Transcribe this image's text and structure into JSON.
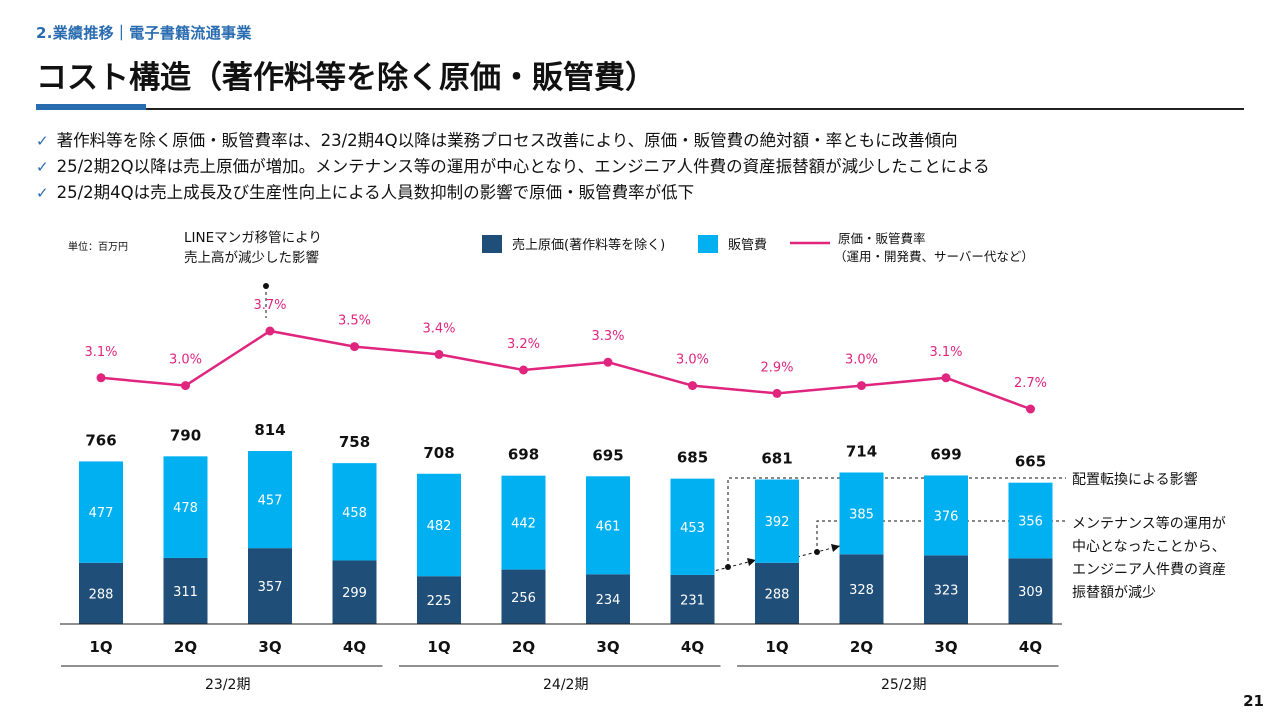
{
  "header": {
    "section": "2.業績推移｜電子書籍流通事業",
    "title": "コスト構造（著作料等を除く原価・販管費）"
  },
  "bullets": [
    "著作料等を除く原価・販管費率は、23/2期4Q以降は業務プロセス改善により、原価・販管費の絶対額・率ともに改善傾向",
    "25/2期2Q以降は売上原価が増加。メンテナンス等の運用が中心となり、エンジニア人件費の資産振替額が減少したことによる",
    "25/2期4Qは売上成長及び生産性向上による人員数抑制の影響で原価・販管費率が低下"
  ],
  "icons": {
    "bullet": "check-icon"
  },
  "chart_data": {
    "type": "bar",
    "stacked": true,
    "unit_label": "単位：百万円",
    "categories": [
      "1Q",
      "2Q",
      "3Q",
      "4Q",
      "1Q",
      "2Q",
      "3Q",
      "4Q",
      "1Q",
      "2Q",
      "3Q",
      "4Q"
    ],
    "groups": [
      {
        "label": "23/2期",
        "start": 0,
        "end": 3
      },
      {
        "label": "24/2期",
        "start": 4,
        "end": 7
      },
      {
        "label": "25/2期",
        "start": 8,
        "end": 11
      }
    ],
    "series": [
      {
        "name": "売上原価(著作料等を除く)",
        "color": "#1f4e79",
        "values": [
          288,
          311,
          357,
          299,
          225,
          256,
          234,
          231,
          288,
          328,
          323,
          309
        ]
      },
      {
        "name": "販管費",
        "color": "#00b0f0",
        "values": [
          477,
          478,
          457,
          458,
          482,
          442,
          461,
          453,
          392,
          385,
          376,
          356
        ]
      }
    ],
    "totals": [
      766,
      790,
      814,
      758,
      708,
      698,
      695,
      685,
      681,
      714,
      699,
      665
    ],
    "line": {
      "name": "原価・販管費率",
      "name_line2": "（運用・開発費、サーバー代など）",
      "color": "#e0257f",
      "values": [
        3.1,
        3.0,
        3.7,
        3.5,
        3.4,
        3.2,
        3.3,
        3.0,
        2.9,
        3.0,
        3.1,
        2.7
      ],
      "labels": [
        "3.1%",
        "3.0%",
        "3.7%",
        "3.5%",
        "3.4%",
        "3.2%",
        "3.3%",
        "3.0%",
        "2.9%",
        "3.0%",
        "3.1%",
        "2.7%"
      ]
    },
    "annotations": {
      "line_note": [
        "LINEマンガ移管により",
        "売上高が減少した影響"
      ],
      "realloc": "配置転換による影響",
      "maintenance": [
        "メンテナンス等の運用が",
        "中心となったことから、",
        "エンジニア人件費の資産",
        "振替額が減少"
      ]
    }
  },
  "footer": {
    "page": "21"
  }
}
